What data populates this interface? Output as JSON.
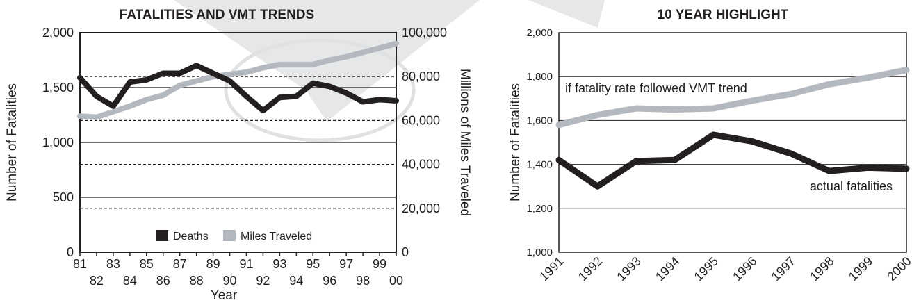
{
  "chart_data": [
    {
      "type": "line",
      "title": "FATALITIES AND VMT TRENDS",
      "xlabel": "Year",
      "ylabel": "Number of Fatalities",
      "y2label": "Millions of Miles Traveled",
      "x": [
        "81",
        "82",
        "83",
        "84",
        "85",
        "86",
        "87",
        "88",
        "89",
        "90",
        "91",
        "92",
        "93",
        "94",
        "95",
        "96",
        "97",
        "98",
        "99",
        "00"
      ],
      "ylim": [
        0,
        2000
      ],
      "y2lim": [
        0,
        100000
      ],
      "yticks": [
        "0",
        "500",
        "1,000",
        "1,500",
        "2,000"
      ],
      "y2ticks": [
        "0",
        "20,000",
        "40,000",
        "60,000",
        "80,000",
        "100,000"
      ],
      "legend_position": "bottom-center",
      "series": [
        {
          "name": "Deaths",
          "axis": "left",
          "color": "#231f20",
          "values": [
            1590,
            1420,
            1330,
            1550,
            1570,
            1630,
            1630,
            1700,
            1630,
            1560,
            1420,
            1290,
            1410,
            1420,
            1540,
            1510,
            1450,
            1370,
            1390,
            1380
          ]
        },
        {
          "name": "Miles Traveled",
          "axis": "right",
          "color": "#b4b8bf",
          "values": [
            62000,
            61500,
            64000,
            66500,
            69500,
            71500,
            76000,
            78000,
            80000,
            81000,
            82000,
            84000,
            85500,
            85500,
            85500,
            87500,
            89000,
            91000,
            93000,
            95000
          ]
        }
      ]
    },
    {
      "type": "line",
      "title": "10  YEAR HIGHLIGHT",
      "xlabel": "",
      "ylabel": "Number of Fatalities",
      "x": [
        "1991",
        "1992",
        "1993",
        "1994",
        "1995",
        "1996",
        "1997",
        "1998",
        "1999",
        "2000"
      ],
      "ylim": [
        1000,
        2000
      ],
      "yticks": [
        "1,000",
        "1,200",
        "1,400",
        "1,600",
        "1,800",
        "2,000"
      ],
      "annotations": [
        "if fatality rate followed VMT trend",
        "actual fatalities"
      ],
      "series": [
        {
          "axis": "left",
          "color": "#b4b8bf",
          "values": [
            1580,
            1625,
            1655,
            1650,
            1655,
            1690,
            1720,
            1765,
            1795,
            1830
          ]
        },
        {
          "axis": "left",
          "color": "#231f20",
          "values": [
            1420,
            1300,
            1415,
            1420,
            1535,
            1505,
            1450,
            1370,
            1385,
            1380
          ]
        }
      ]
    }
  ]
}
